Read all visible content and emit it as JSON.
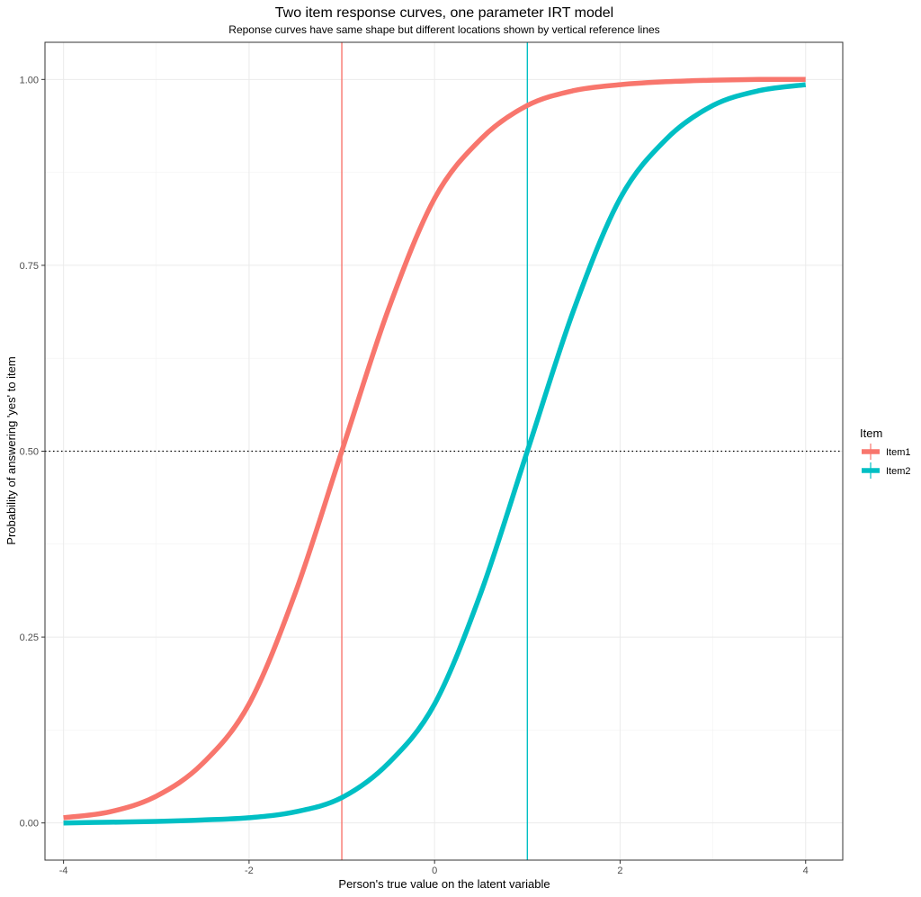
{
  "chart_data": {
    "type": "line",
    "title": "Two item response curves, one parameter IRT model",
    "subtitle": "Reponse curves have same shape but different locations shown by vertical reference lines",
    "xlabel": "Person's true value on the latent variable",
    "ylabel": "Probability of answering 'yes' to item",
    "xlim": [
      -4.2,
      4.4
    ],
    "ylim": [
      -0.05,
      1.05
    ],
    "x_ticks": [
      -4,
      -2,
      0,
      2,
      4
    ],
    "y_ticks": [
      0.0,
      0.25,
      0.5,
      0.75,
      1.0
    ],
    "x_tick_labels": [
      "-4",
      "-2",
      "0",
      "2",
      "4"
    ],
    "y_tick_labels": [
      "0.00",
      "0.25",
      "0.50",
      "0.75",
      "1.00"
    ],
    "grid": true,
    "legend_title": "Item",
    "legend_position": "right",
    "x": [
      -4.0,
      -3.5,
      -3.0,
      -2.5,
      -2.0,
      -1.5,
      -1.0,
      -0.5,
      0.0,
      0.5,
      1.0,
      1.5,
      2.0,
      2.5,
      3.0,
      3.5,
      4.0
    ],
    "series": [
      {
        "name": "Item1",
        "color": "#F8766D",
        "values": [
          0.007,
          0.015,
          0.036,
          0.08,
          0.16,
          0.31,
          0.5,
          0.69,
          0.84,
          0.92,
          0.965,
          0.985,
          0.993,
          0.997,
          0.999,
          1.0,
          1.0
        ]
      },
      {
        "name": "Item2",
        "color": "#00BFC4",
        "values": [
          0.0,
          0.001,
          0.002,
          0.004,
          0.007,
          0.015,
          0.034,
          0.08,
          0.16,
          0.31,
          0.5,
          0.69,
          0.84,
          0.92,
          0.965,
          0.985,
          0.993
        ]
      }
    ],
    "reference_lines": [
      {
        "orientation": "vertical",
        "value": -1,
        "color": "#F8766D",
        "style": "solid"
      },
      {
        "orientation": "vertical",
        "value": 1,
        "color": "#00BFC4",
        "style": "solid"
      },
      {
        "orientation": "horizontal",
        "value": 0.5,
        "color": "#000000",
        "style": "dotted"
      }
    ]
  }
}
